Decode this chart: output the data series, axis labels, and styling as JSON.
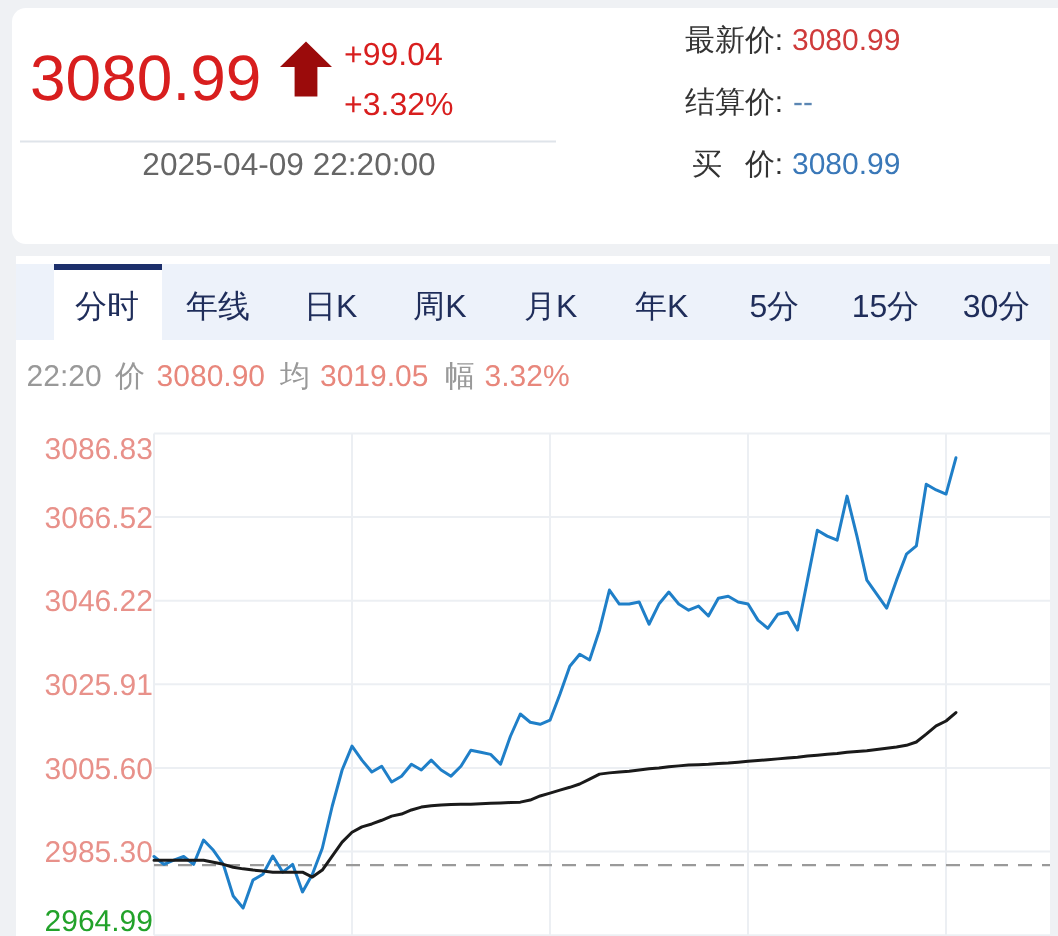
{
  "chart_data": {
    "type": "line",
    "annotations": [
      "3080.99",
      "+99.04",
      "+3.32%",
      "2025-04-09 22:20:00",
      "最新价:",
      "3080.99",
      "结算价:",
      "--",
      "买 价:",
      "3080.99",
      "分时",
      "年线",
      "日K",
      "周K",
      "月K",
      "年K",
      "5分",
      "15分",
      "30分",
      "22:20",
      "价",
      "3080.90",
      "均",
      "3019.05",
      "幅",
      "3.32%"
    ],
    "categories": [
      null,
      null,
      null,
      null,
      null,
      null,
      null,
      null,
      null,
      null,
      null,
      null,
      null,
      null,
      null,
      null,
      null,
      null,
      null,
      null,
      null,
      null,
      null,
      null,
      null,
      null,
      null,
      null,
      null,
      null,
      null,
      null,
      null,
      null,
      null,
      null,
      null,
      null,
      null,
      null,
      null,
      null,
      null,
      null,
      null,
      null,
      null,
      null,
      null,
      null,
      null,
      null,
      null,
      null,
      null,
      null,
      null,
      null,
      null,
      null,
      null,
      null,
      null,
      null,
      null,
      null,
      null,
      null,
      null,
      null,
      null,
      null,
      null,
      null,
      null,
      null,
      null,
      null,
      null,
      null,
      null,
      null,
      null,
      null,
      null,
      null,
      null,
      null,
      null,
      null,
      null
    ],
    "series": [
      {
        "color": "#1f7fc8",
        "values": [
          2984.1,
          2982.2,
          2983.2,
          2984.1,
          2982.2,
          2988.1,
          2985.6,
          2982.2,
          2974.5,
          2971.6,
          2978.4,
          2979.8,
          2984.2,
          2980.3,
          2982.2,
          2975.5,
          2979.8,
          2986.1,
          2996.3,
          3005.1,
          3010.9,
          3007.5,
          3004.6,
          3006.0,
          3002.2,
          3003.6,
          3006.5,
          3005.1,
          3007.5,
          3005.1,
          3003.6,
          3006.0,
          3009.9,
          3009.4,
          3008.9,
          3006.5,
          3013.3,
          3018.7,
          3016.7,
          3016.2,
          3017.2,
          3023.5,
          3030.3,
          3033.2,
          3031.8,
          3039.1,
          3048.8,
          3045.4,
          3045.4,
          3045.9,
          3040.5,
          3045.4,
          3048.3,
          3045.4,
          3043.9,
          3044.9,
          3042.5,
          3046.8,
          3047.3,
          3045.9,
          3045.4,
          3041.5,
          3039.5,
          3042.9,
          3043.4,
          3039.1,
          3051.2,
          3063.3,
          3061.9,
          3060.9,
          3071.6,
          3061.9,
          3051.2,
          3047.8,
          3044.4,
          3051.2,
          3057.5,
          3059.5,
          3074.5,
          3073.1,
          3072.1,
          3080.9,
          null,
          null,
          null,
          null,
          null,
          null,
          null,
          null,
          null
        ]
      },
      {
        "color": "#1a1a1a",
        "values": [
          2983.2,
          2983.2,
          2983.2,
          2983.2,
          2983.2,
          2983.2,
          2982.7,
          2982.2,
          2981.5,
          2981.1,
          2980.8,
          2980.6,
          2980.3,
          2980.3,
          2980.3,
          2980.3,
          2979.1,
          2980.8,
          2984.2,
          2987.6,
          2990.0,
          2991.3,
          2992.0,
          2992.9,
          2993.9,
          2994.4,
          2995.4,
          2996.1,
          2996.4,
          2996.6,
          2996.7,
          2996.8,
          2996.8,
          2996.9,
          2997.0,
          2997.1,
          2997.2,
          2997.3,
          2997.8,
          2998.8,
          2999.5,
          3000.2,
          3000.9,
          3001.7,
          3002.9,
          3004.1,
          3004.4,
          3004.6,
          3004.8,
          3005.1,
          3005.4,
          3005.6,
          3005.9,
          3006.1,
          3006.3,
          3006.4,
          3006.5,
          3006.7,
          3006.8,
          3007.0,
          3007.2,
          3007.4,
          3007.6,
          3007.8,
          3008.0,
          3008.2,
          3008.5,
          3008.7,
          3008.9,
          3009.1,
          3009.4,
          3009.6,
          3009.8,
          3010.1,
          3010.4,
          3010.7,
          3011.1,
          3011.9,
          3013.8,
          3015.8,
          3017.0,
          3019.05,
          null,
          null,
          null,
          null,
          null,
          null,
          null,
          null,
          null
        ]
      }
    ],
    "ylim": [
      2964.99,
      3086.83
    ],
    "yticks": [
      2964.99,
      {
        "value": 2985.3,
        "label": "2985.30"
      },
      {
        "value": 3005.6,
        "label": "3005.60"
      },
      3025.91,
      3046.22,
      3066.52,
      3086.83
    ],
    "grid": true,
    "tick_labels": "y",
    "ref_lines": [
      {
        "axis": "y",
        "value": 2982,
        "color": "#9a9a9a",
        "line_style": "dashed"
      }
    ]
  }
}
